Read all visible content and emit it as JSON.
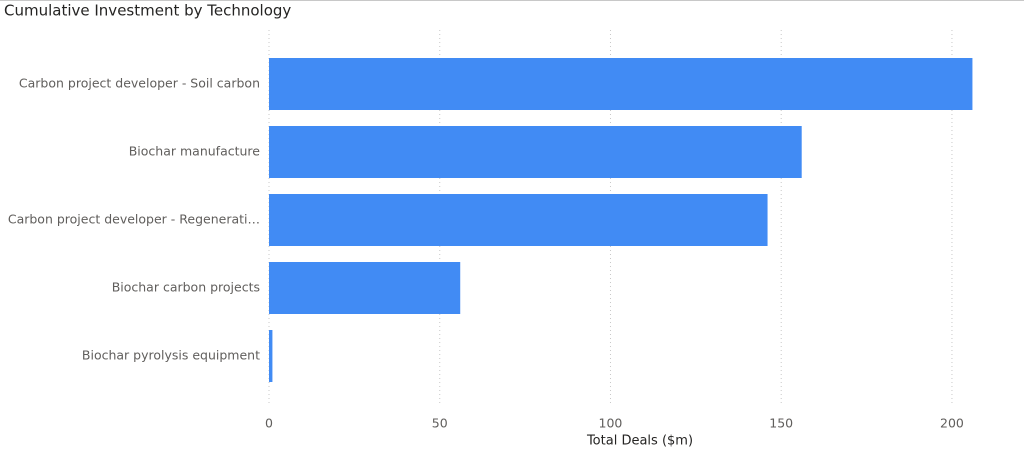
{
  "chart_data": {
    "type": "barh",
    "title": "Cumulative Investment by Technology",
    "categories": [
      "Carbon project developer - Soil carbon",
      "Biochar manufacture",
      "Carbon project developer - Regenerati…",
      "Biochar carbon projects",
      "Biochar pyrolysis equipment"
    ],
    "values": [
      206,
      156,
      146,
      56,
      1
    ],
    "color": "#418bf4",
    "xlabel": "Total Deals ($m)",
    "xlim": [
      0,
      217
    ],
    "xticks": [
      0,
      50,
      100,
      150,
      200
    ],
    "grid": true
  }
}
